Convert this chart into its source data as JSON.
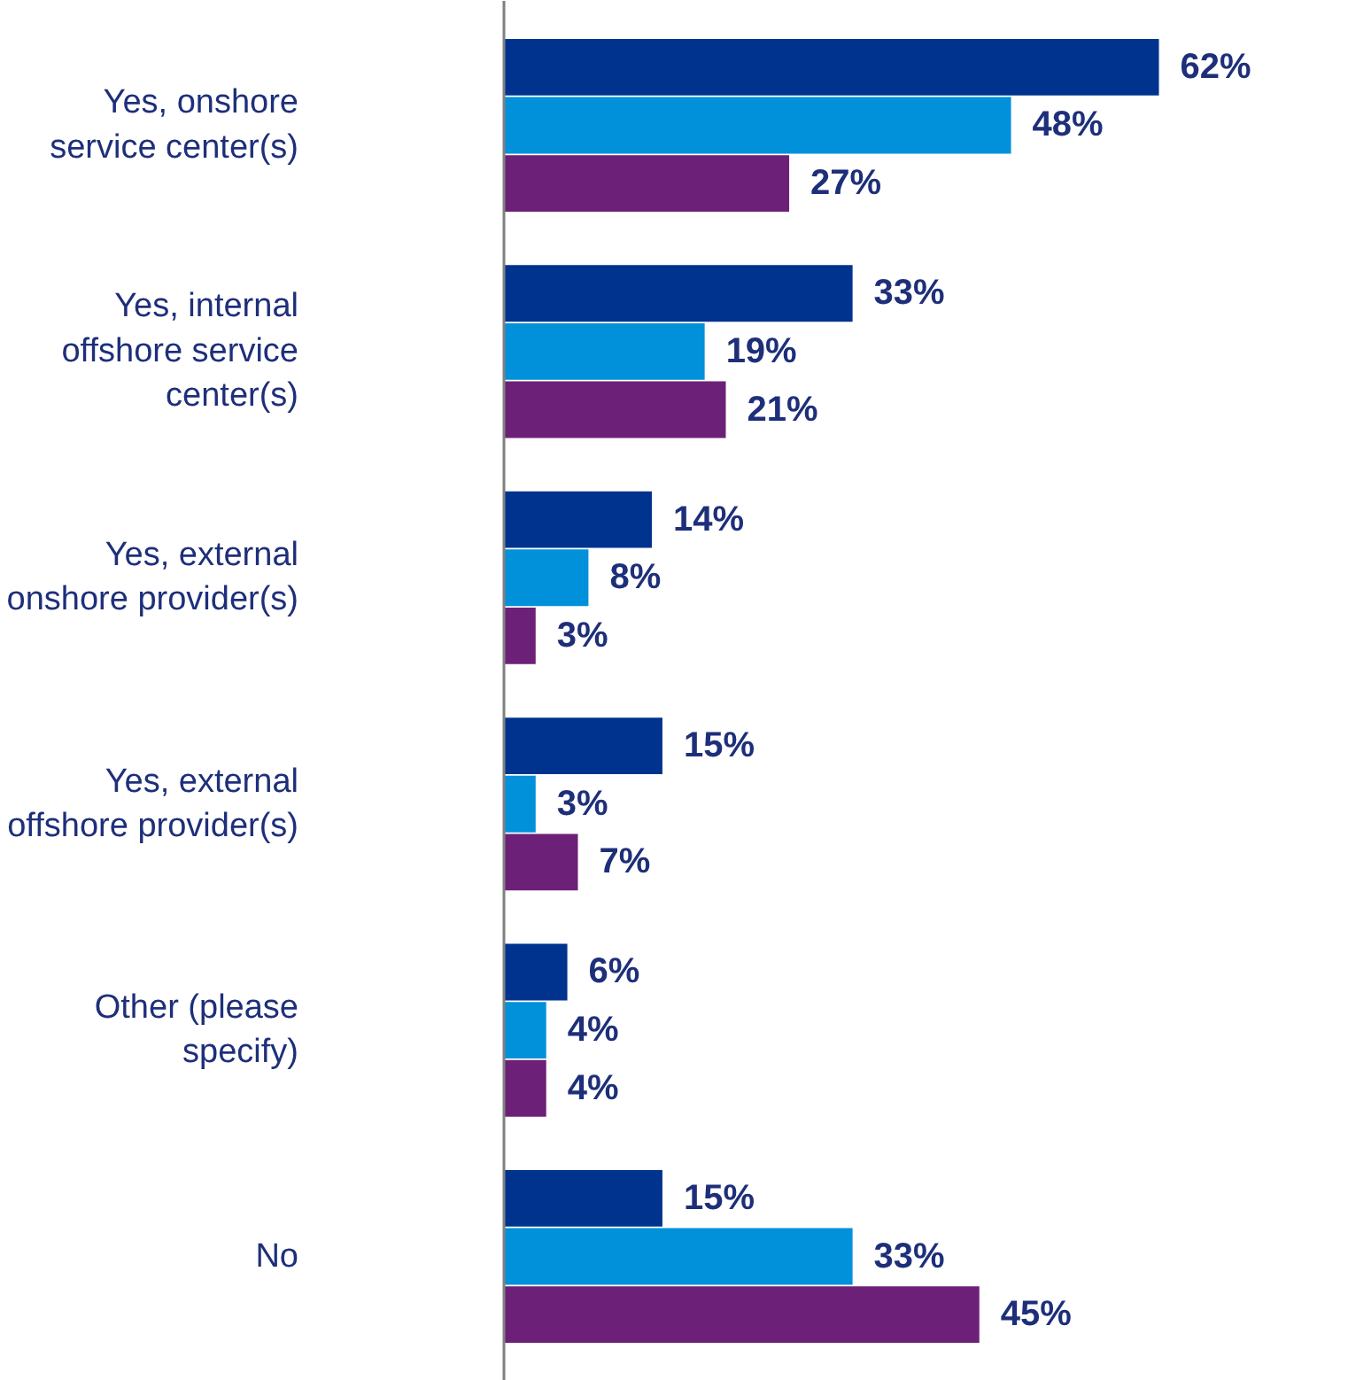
{
  "chart_data": {
    "type": "bar",
    "orientation": "horizontal",
    "categories": [
      "Yes, onshore service center(s)",
      "Yes, internal offshore service center(s)",
      "Yes, external onshore provider(s)",
      "Yes, external offshore provider(s)",
      "Other (please specify)",
      "No"
    ],
    "series": [
      {
        "color": "#00338d",
        "values": [
          62,
          33,
          14,
          15,
          6,
          15
        ],
        "value_labels": [
          "62%",
          "33%",
          "14%",
          "15%",
          "6%",
          "15%"
        ]
      },
      {
        "color": "#0091da",
        "values": [
          48,
          19,
          8,
          3,
          4,
          33
        ],
        "value_labels": [
          "48%",
          "19%",
          "8%",
          "3%",
          "4%",
          "33%"
        ]
      },
      {
        "color": "#6d2077",
        "values": [
          27,
          21,
          3,
          7,
          4,
          45
        ],
        "value_labels": [
          "27%",
          "21%",
          "3%",
          "7%",
          "4%",
          "45%"
        ]
      }
    ],
    "grid": false
  }
}
